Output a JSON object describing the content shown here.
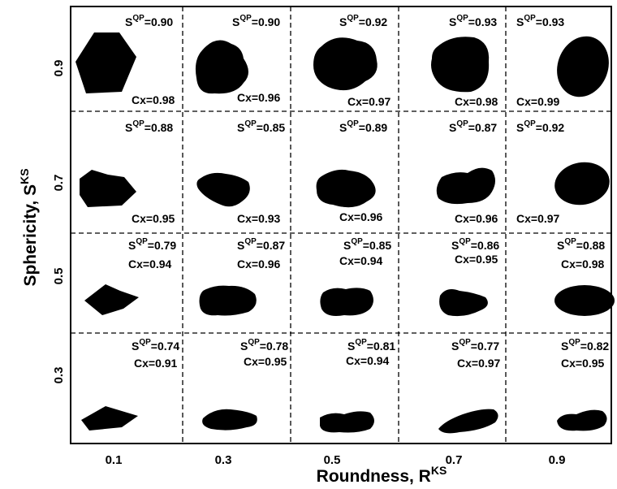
{
  "axes": {
    "x_label": "Roundness, R",
    "x_label_sup": "KS",
    "y_label": "Sphericity, S",
    "y_label_sup": "KS",
    "x_ticks": [
      "0.1",
      "0.3",
      "0.5",
      "0.7",
      "0.9"
    ],
    "y_ticks": [
      "0.9",
      "0.7",
      "0.5",
      "0.3"
    ]
  },
  "s_prefix": "S",
  "s_sup": "QP",
  "rows": [
    {
      "sphericity": "0.9",
      "cells": [
        {
          "roundness": "0.1",
          "s": "=0.90",
          "cx": "Cx=0.98"
        },
        {
          "roundness": "0.3",
          "s": "=0.90",
          "cx": "Cx=0.96"
        },
        {
          "roundness": "0.5",
          "s": "=0.92",
          "cx": "Cx=0.97"
        },
        {
          "roundness": "0.7",
          "s": "=0.93",
          "cx": "Cx=0.98"
        },
        {
          "roundness": "0.9",
          "s": "=0.93",
          "cx": "Cx=0.99"
        }
      ]
    },
    {
      "sphericity": "0.7",
      "cells": [
        {
          "roundness": "0.1",
          "s": "=0.88",
          "cx": "Cx=0.95"
        },
        {
          "roundness": "0.3",
          "s": "=0.85",
          "cx": "Cx=0.93"
        },
        {
          "roundness": "0.5",
          "s": "=0.89",
          "cx": "Cx=0.96"
        },
        {
          "roundness": "0.7",
          "s": "=0.87",
          "cx": "Cx=0.96"
        },
        {
          "roundness": "0.9",
          "s": "=0.92",
          "cx": "Cx=0.97"
        }
      ]
    },
    {
      "sphericity": "0.5",
      "cells": [
        {
          "roundness": "0.1",
          "s": "=0.79",
          "cx": "Cx=0.94"
        },
        {
          "roundness": "0.3",
          "s": "=0.87",
          "cx": "Cx=0.96"
        },
        {
          "roundness": "0.5",
          "s": "=0.85",
          "cx": "Cx=0.94"
        },
        {
          "roundness": "0.7",
          "s": "=0.86",
          "cx": "Cx=0.95"
        },
        {
          "roundness": "0.9",
          "s": "=0.88",
          "cx": "Cx=0.98"
        }
      ]
    },
    {
      "sphericity": "0.3",
      "cells": [
        {
          "roundness": "0.1",
          "s": "=0.74",
          "cx": "Cx=0.91"
        },
        {
          "roundness": "0.3",
          "s": "=0.78",
          "cx": "Cx=0.95"
        },
        {
          "roundness": "0.5",
          "s": "=0.81",
          "cx": "Cx=0.94"
        },
        {
          "roundness": "0.7",
          "s": "=0.77",
          "cx": "Cx=0.97"
        },
        {
          "roundness": "0.9",
          "s": "=0.82",
          "cx": "Cx=0.95"
        }
      ]
    }
  ]
}
